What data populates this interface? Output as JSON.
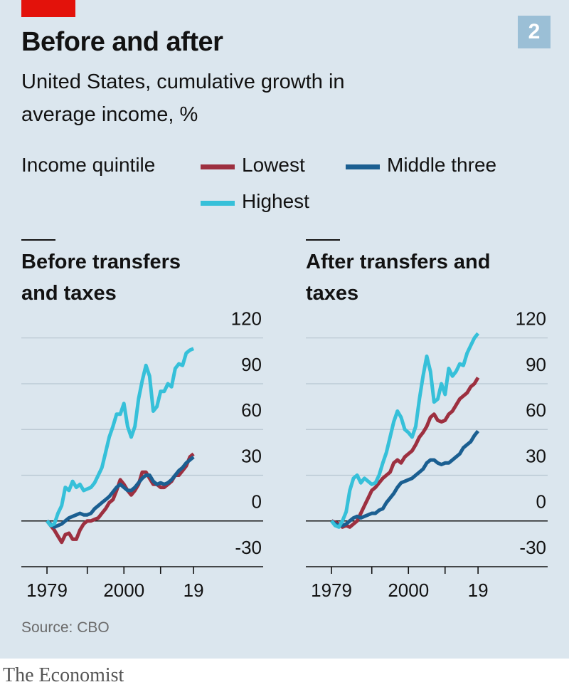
{
  "header": {
    "title": "Before and after",
    "subtitle": "United States, cumulative growth in average income, %",
    "chart_number": "2",
    "legend_title": "Income quintile"
  },
  "chart_data": [
    {
      "type": "line",
      "title": "Before transfers and taxes",
      "x": [
        1979,
        1980,
        1981,
        1982,
        1983,
        1984,
        1985,
        1986,
        1987,
        1988,
        1989,
        1990,
        1991,
        1992,
        1993,
        1994,
        1995,
        1996,
        1997,
        1998,
        1999,
        2000,
        2001,
        2002,
        2003,
        2004,
        2005,
        2006,
        2007,
        2008,
        2009,
        2010,
        2011,
        2012,
        2013,
        2014,
        2015,
        2016,
        2017,
        2018,
        2019
      ],
      "series": [
        {
          "name": "Lowest",
          "color": "#9d3040",
          "values": [
            0,
            -3,
            -6,
            -10,
            -14,
            -9,
            -8,
            -12,
            -12,
            -6,
            -2,
            0,
            0,
            1,
            2,
            5,
            8,
            12,
            14,
            20,
            27,
            24,
            20,
            17,
            20,
            24,
            32,
            32,
            28,
            24,
            24,
            22,
            22,
            24,
            26,
            30,
            30,
            33,
            36,
            42,
            44
          ]
        },
        {
          "name": "Middle three",
          "color": "#1b5f91",
          "values": [
            0,
            -2,
            -4,
            -3,
            -2,
            0,
            2,
            3,
            4,
            5,
            4,
            4,
            5,
            8,
            10,
            12,
            14,
            16,
            19,
            22,
            24,
            22,
            20,
            20,
            22,
            25,
            28,
            30,
            30,
            26,
            24,
            25,
            24,
            25,
            27,
            30,
            33,
            35,
            38,
            40,
            42
          ]
        },
        {
          "name": "Highest",
          "color": "#36c0d9",
          "values": [
            0,
            -3,
            -2,
            5,
            10,
            22,
            20,
            26,
            22,
            24,
            20,
            21,
            22,
            25,
            30,
            35,
            45,
            55,
            62,
            70,
            70,
            77,
            62,
            55,
            62,
            80,
            92,
            102,
            95,
            72,
            75,
            85,
            85,
            90,
            88,
            100,
            103,
            102,
            110,
            112,
            113
          ]
        }
      ],
      "xlim": [
        1972,
        2038
      ],
      "xticks": [
        1979,
        2000,
        {
          "value": 2019,
          "label": "19"
        }
      ],
      "xminor_ticks": [
        1990,
        2010
      ],
      "ylim": [
        -30,
        125
      ],
      "yticks": [
        -30,
        0,
        30,
        60,
        90,
        120
      ],
      "grid": true
    },
    {
      "type": "line",
      "title": "After transfers and taxes",
      "x": [
        1979,
        1980,
        1981,
        1982,
        1983,
        1984,
        1985,
        1986,
        1987,
        1988,
        1989,
        1990,
        1991,
        1992,
        1993,
        1994,
        1995,
        1996,
        1997,
        1998,
        1999,
        2000,
        2001,
        2002,
        2003,
        2004,
        2005,
        2006,
        2007,
        2008,
        2009,
        2010,
        2011,
        2012,
        2013,
        2014,
        2015,
        2016,
        2017,
        2018,
        2019
      ],
      "series": [
        {
          "color": "#9d3040",
          "values": [
            0,
            -1,
            -2,
            -4,
            -3,
            -4,
            -2,
            0,
            5,
            10,
            15,
            20,
            22,
            25,
            28,
            30,
            32,
            38,
            40,
            38,
            42,
            44,
            46,
            50,
            55,
            58,
            62,
            68,
            70,
            66,
            65,
            66,
            70,
            72,
            76,
            80,
            82,
            84,
            88,
            90,
            94
          ]
        },
        {
          "color": "#1b5f91",
          "values": [
            0,
            -2,
            -3,
            -3,
            -2,
            0,
            2,
            3,
            2,
            3,
            4,
            5,
            5,
            7,
            8,
            12,
            15,
            18,
            22,
            25,
            26,
            27,
            28,
            30,
            32,
            34,
            38,
            40,
            40,
            38,
            37,
            38,
            38,
            40,
            42,
            44,
            48,
            50,
            52,
            56,
            59
          ]
        },
        {
          "color": "#36c0d9",
          "values": [
            0,
            -3,
            -4,
            0,
            6,
            20,
            28,
            30,
            25,
            28,
            26,
            24,
            25,
            30,
            38,
            45,
            55,
            65,
            72,
            68,
            60,
            58,
            55,
            62,
            80,
            95,
            108,
            98,
            78,
            80,
            90,
            83,
            100,
            95,
            98,
            103,
            102,
            110,
            115,
            120,
            123
          ]
        }
      ],
      "xlim": [
        1972,
        2038
      ],
      "xticks": [
        1979,
        2000,
        {
          "value": 2019,
          "label": "19"
        }
      ],
      "xminor_ticks": [
        1990,
        2010
      ],
      "ylim": [
        -30,
        125
      ],
      "yticks": [
        -30,
        0,
        30,
        60,
        90,
        120
      ],
      "grid": true
    }
  ],
  "source": "Source: CBO",
  "brand": "The Economist"
}
